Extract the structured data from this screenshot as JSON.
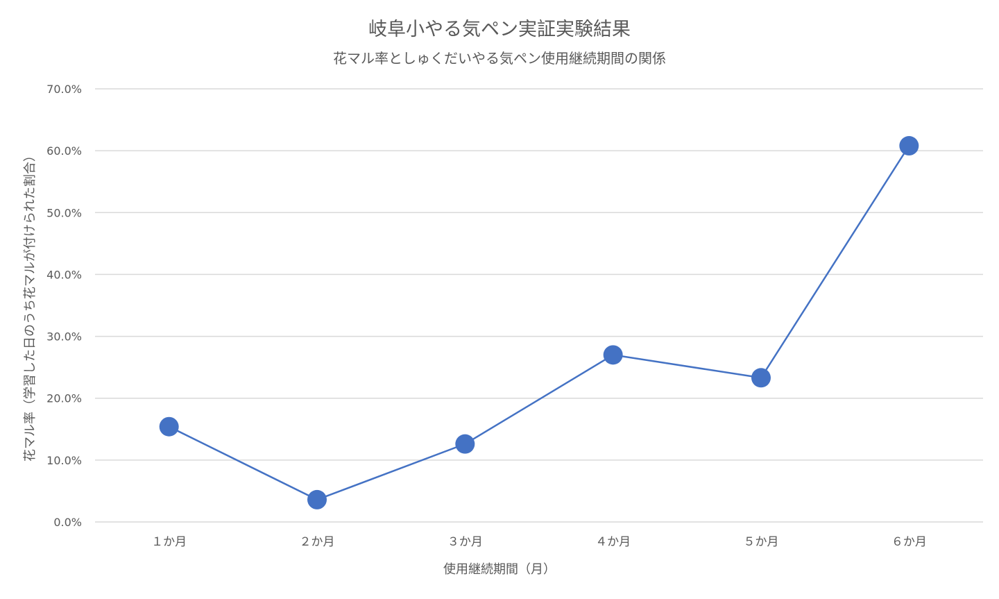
{
  "chart_data": {
    "type": "line",
    "title": "岐阜小やる気ペン実証実験結果",
    "subtitle": "花マル率としゅくだいやる気ペン使用継続期間の関係",
    "xlabel": "使用継続期間（月）",
    "ylabel": "花マル率（学習した日のうち花マルが付けられた割合）",
    "categories": [
      "１か月",
      "２か月",
      "３か月",
      "４か月",
      "５か月",
      "６か月"
    ],
    "series": [
      {
        "values": [
          15.4,
          3.6,
          12.6,
          27.0,
          23.3,
          60.8
        ]
      }
    ],
    "ylim": [
      0,
      70
    ],
    "yticks": [
      "0.0%",
      "10.0%",
      "20.0%",
      "30.0%",
      "40.0%",
      "50.0%",
      "60.0%",
      "70.0%"
    ],
    "grid": true,
    "legend": "none",
    "colors": {
      "series": "#4472C4",
      "grid": "#d9d9d9",
      "text": "#595959"
    }
  }
}
